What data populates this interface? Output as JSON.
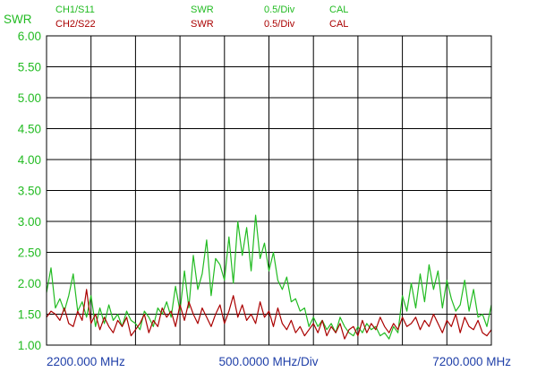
{
  "header": {
    "ch1": {
      "trace": "CH1/S11",
      "format": "SWR",
      "scale": "0.5/Div",
      "cal": "CAL",
      "color": "#22bb22"
    },
    "ch2": {
      "trace": "CH2/S22",
      "format": "SWR",
      "scale": "0.5/Div",
      "cal": "CAL",
      "color": "#aa0000"
    }
  },
  "y_axis_title": "SWR",
  "footer": {
    "start": "2200.000 MHz",
    "span": "500.0000 MHz/Div",
    "stop": "7200.000 MHz"
  },
  "chart_data": {
    "type": "line",
    "ylabel": "SWR",
    "ylim": [
      1.0,
      6.0
    ],
    "y_ticks": [
      "6.00",
      "5.50",
      "5.00",
      "4.50",
      "4.00",
      "3.50",
      "3.00",
      "2.50",
      "2.00",
      "1.50",
      "1.00"
    ],
    "xlim": [
      2200,
      7200
    ],
    "x_unit": "MHz",
    "grid": true,
    "series": [
      {
        "name": "CH1/S11",
        "color": "#22bb22",
        "x": [
          2200,
          2250,
          2300,
          2350,
          2400,
          2450,
          2500,
          2550,
          2600,
          2650,
          2700,
          2750,
          2800,
          2850,
          2900,
          2950,
          3000,
          3050,
          3100,
          3150,
          3200,
          3250,
          3300,
          3350,
          3400,
          3450,
          3500,
          3550,
          3600,
          3650,
          3700,
          3750,
          3800,
          3850,
          3900,
          3950,
          4000,
          4050,
          4100,
          4150,
          4200,
          4250,
          4300,
          4350,
          4400,
          4450,
          4500,
          4550,
          4600,
          4650,
          4700,
          4750,
          4800,
          4850,
          4900,
          4950,
          5000,
          5050,
          5100,
          5150,
          5200,
          5250,
          5300,
          5350,
          5400,
          5450,
          5500,
          5550,
          5600,
          5650,
          5700,
          5750,
          5800,
          5850,
          5900,
          5950,
          6000,
          6050,
          6100,
          6150,
          6200,
          6250,
          6300,
          6350,
          6400,
          6450,
          6500,
          6550,
          6600,
          6650,
          6700,
          6750,
          6800,
          6850,
          6900,
          6950,
          7000,
          7050,
          7100,
          7150,
          7200
        ],
        "values": [
          1.85,
          2.25,
          1.6,
          1.75,
          1.55,
          1.8,
          2.15,
          1.55,
          1.7,
          1.45,
          1.8,
          1.3,
          1.6,
          1.35,
          1.65,
          1.4,
          1.5,
          1.3,
          1.55,
          1.4,
          1.35,
          1.25,
          1.55,
          1.45,
          1.3,
          1.6,
          1.5,
          1.7,
          1.45,
          1.95,
          1.55,
          2.2,
          1.6,
          2.45,
          1.9,
          2.15,
          2.7,
          1.8,
          2.4,
          2.3,
          2.05,
          2.75,
          2.0,
          3.0,
          2.45,
          2.9,
          2.2,
          3.1,
          2.4,
          2.65,
          2.2,
          2.5,
          2.05,
          1.9,
          2.1,
          1.7,
          1.75,
          1.55,
          1.6,
          1.3,
          1.45,
          1.3,
          1.4,
          1.25,
          1.35,
          1.2,
          1.45,
          1.3,
          1.2,
          1.15,
          1.3,
          1.2,
          1.35,
          1.25,
          1.3,
          1.15,
          1.2,
          1.1,
          1.3,
          1.2,
          1.8,
          1.55,
          2.0,
          1.6,
          2.15,
          1.7,
          2.3,
          1.9,
          2.2,
          1.6,
          2.05,
          1.75,
          1.55,
          1.65,
          2.05,
          1.55,
          1.9,
          1.45,
          1.5,
          1.3,
          1.65
        ]
      },
      {
        "name": "CH2/S22",
        "color": "#aa0000",
        "x": [
          2200,
          2250,
          2300,
          2350,
          2400,
          2450,
          2500,
          2550,
          2600,
          2650,
          2700,
          2750,
          2800,
          2850,
          2900,
          2950,
          3000,
          3050,
          3100,
          3150,
          3200,
          3250,
          3300,
          3350,
          3400,
          3450,
          3500,
          3550,
          3600,
          3650,
          3700,
          3750,
          3800,
          3850,
          3900,
          3950,
          4000,
          4050,
          4100,
          4150,
          4200,
          4250,
          4300,
          4350,
          4400,
          4450,
          4500,
          4550,
          4600,
          4650,
          4700,
          4750,
          4800,
          4850,
          4900,
          4950,
          5000,
          5050,
          5100,
          5150,
          5200,
          5250,
          5300,
          5350,
          5400,
          5450,
          5500,
          5550,
          5600,
          5650,
          5700,
          5750,
          5800,
          5850,
          5900,
          5950,
          6000,
          6050,
          6100,
          6150,
          6200,
          6250,
          6300,
          6350,
          6400,
          6450,
          6500,
          6550,
          6600,
          6650,
          6700,
          6750,
          6800,
          6850,
          6900,
          6950,
          7000,
          7050,
          7100,
          7150,
          7200
        ],
        "values": [
          1.45,
          1.55,
          1.5,
          1.4,
          1.6,
          1.35,
          1.3,
          1.55,
          1.4,
          1.9,
          1.35,
          1.5,
          1.25,
          1.45,
          1.3,
          1.2,
          1.4,
          1.3,
          1.45,
          1.15,
          1.25,
          1.35,
          1.5,
          1.2,
          1.4,
          1.3,
          1.6,
          1.45,
          1.55,
          1.3,
          1.65,
          1.4,
          1.7,
          1.5,
          1.35,
          1.6,
          1.45,
          1.3,
          1.5,
          1.65,
          1.35,
          1.55,
          1.8,
          1.45,
          1.65,
          1.4,
          1.5,
          1.35,
          1.7,
          1.45,
          1.55,
          1.3,
          1.6,
          1.35,
          1.25,
          1.4,
          1.2,
          1.3,
          1.15,
          1.25,
          1.35,
          1.2,
          1.4,
          1.15,
          1.3,
          1.2,
          1.35,
          1.1,
          1.25,
          1.3,
          1.15,
          1.4,
          1.2,
          1.35,
          1.25,
          1.45,
          1.3,
          1.2,
          1.35,
          1.25,
          1.45,
          1.3,
          1.35,
          1.45,
          1.25,
          1.4,
          1.3,
          1.5,
          1.35,
          1.2,
          1.4,
          1.3,
          1.5,
          1.2,
          1.45,
          1.3,
          1.25,
          1.4,
          1.2,
          1.15,
          1.25
        ]
      }
    ]
  }
}
